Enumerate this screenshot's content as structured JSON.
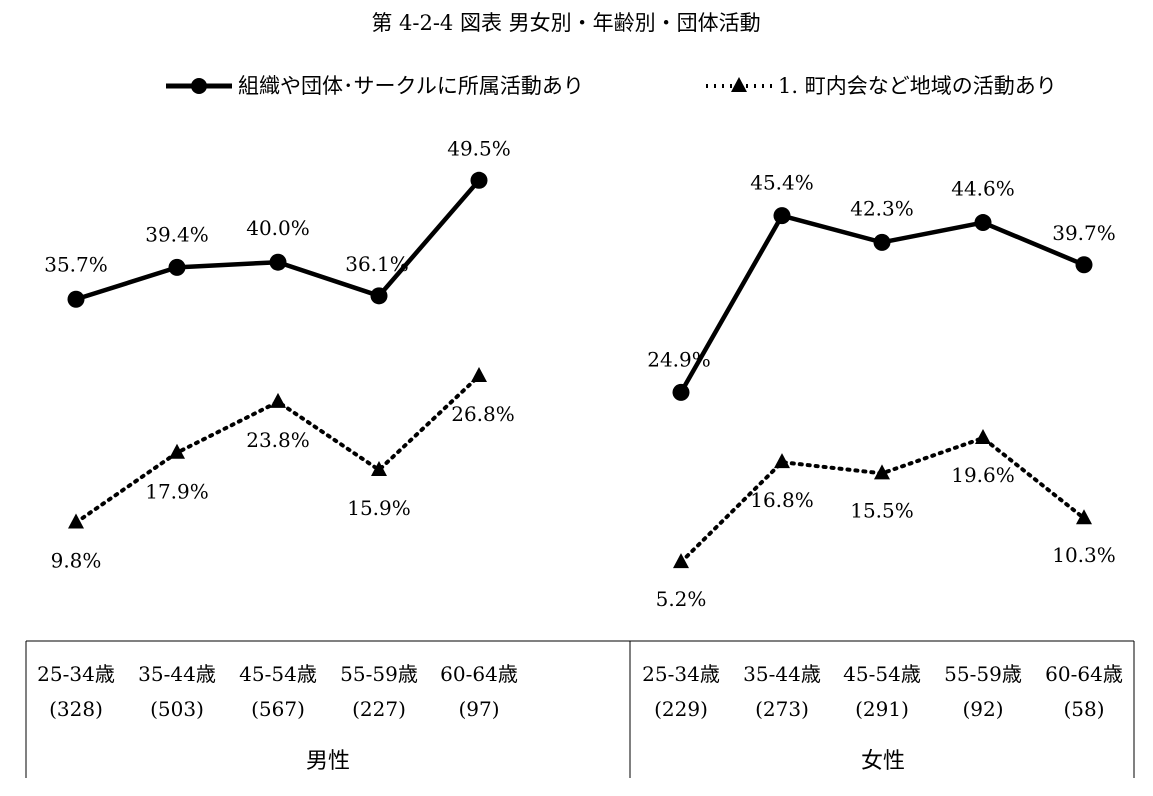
{
  "chart_data": {
    "type": "line",
    "title": "第 4-2-4 図表 男女別・年齢別・団体活動",
    "legend": [
      {
        "name": "組織や団体･サークルに所属活動あり",
        "style": "solid",
        "marker": "circle"
      },
      {
        "name": "1. 町内会など地域の活動あり",
        "style": "dotted",
        "marker": "triangle"
      }
    ],
    "ylim": [
      0,
      55
    ],
    "groups": [
      {
        "name": "男性",
        "categories": [
          "25-34歳",
          "35-44歳",
          "45-54歳",
          "55-59歳",
          "60-64歳"
        ],
        "counts": [
          "(328)",
          "(503)",
          "(567)",
          "(227)",
          "(97)"
        ],
        "series": [
          {
            "name": "組織や団体･サークルに所属活動あり",
            "values": [
              35.7,
              39.4,
              40.0,
              36.1,
              49.5
            ],
            "labels": [
              "35.7%",
              "39.4%",
              "40.0%",
              "36.1%",
              "49.5%"
            ]
          },
          {
            "name": "1. 町内会など地域の活動あり",
            "values": [
              9.8,
              17.9,
              23.8,
              15.9,
              26.8
            ],
            "labels": [
              "9.8%",
              "17.9%",
              "23.8%",
              "15.9%",
              "26.8%"
            ]
          }
        ]
      },
      {
        "name": "女性",
        "categories": [
          "25-34歳",
          "35-44歳",
          "45-54歳",
          "55-59歳",
          "60-64歳"
        ],
        "counts": [
          "(229)",
          "(273)",
          "(291)",
          "(92)",
          "(58)"
        ],
        "series": [
          {
            "name": "組織や団体･サークルに所属活動あり",
            "values": [
              24.9,
              45.4,
              42.3,
              44.6,
              39.7
            ],
            "labels": [
              "24.9%",
              "45.4%",
              "42.3%",
              "44.6%",
              "39.7%"
            ]
          },
          {
            "name": "1. 町内会など地域の活動あり",
            "values": [
              5.2,
              16.8,
              15.5,
              19.6,
              10.3
            ],
            "labels": [
              "5.2%",
              "16.8%",
              "15.5%",
              "19.6%",
              "10.3%"
            ]
          }
        ]
      }
    ]
  }
}
